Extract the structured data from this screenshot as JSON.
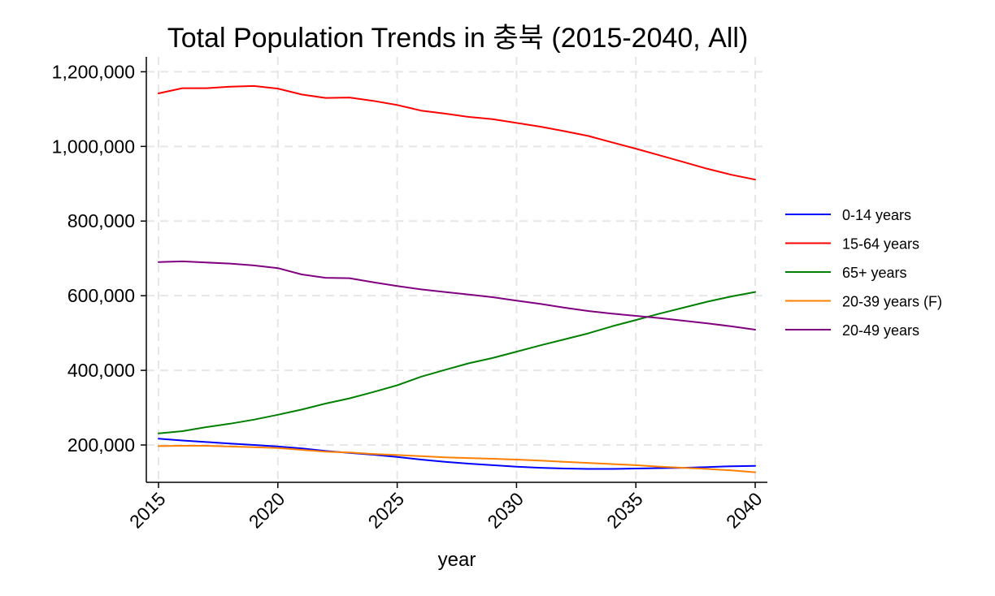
{
  "chart_data": {
    "type": "line",
    "title": "Total Population Trends in 충북 (2015-2040, All)",
    "xlabel": "year",
    "ylabel": "",
    "xlim": [
      2015,
      2040
    ],
    "ylim": [
      100000,
      1240000
    ],
    "grid": true,
    "legend_position": "right",
    "x_ticks": [
      2015,
      2020,
      2025,
      2030,
      2035,
      2040
    ],
    "y_ticks": [
      200000,
      400000,
      600000,
      800000,
      1000000,
      1200000
    ],
    "y_tick_labels": [
      "200,000",
      "400,000",
      "600,000",
      "800,000",
      "1,000,000",
      "1,200,000"
    ],
    "x": [
      2015,
      2016,
      2017,
      2018,
      2019,
      2020,
      2021,
      2022,
      2023,
      2024,
      2025,
      2026,
      2027,
      2028,
      2029,
      2030,
      2031,
      2032,
      2033,
      2034,
      2035,
      2036,
      2037,
      2038,
      2039,
      2040
    ],
    "series": [
      {
        "name": "0-14 years",
        "color": "#0000ff",
        "values": [
          217000,
          212000,
          208000,
          204000,
          200000,
          196000,
          191000,
          184000,
          179000,
          174000,
          168000,
          161000,
          155000,
          150000,
          146000,
          142000,
          139000,
          137000,
          136000,
          136000,
          137000,
          138000,
          139000,
          141000,
          143000,
          144000
        ]
      },
      {
        "name": "15-64 years",
        "color": "#ff0000",
        "values": [
          1142000,
          1156000,
          1156000,
          1160000,
          1162000,
          1155000,
          1139000,
          1130000,
          1131000,
          1122000,
          1111000,
          1096000,
          1088000,
          1079000,
          1073000,
          1063000,
          1053000,
          1041000,
          1028000,
          1011000,
          994000,
          976000,
          958000,
          940000,
          924000,
          911000
        ]
      },
      {
        "name": "65+ years",
        "color": "#008000",
        "values": [
          231000,
          237000,
          248000,
          257000,
          268000,
          281000,
          295000,
          311000,
          325000,
          342000,
          360000,
          383000,
          401000,
          419000,
          433000,
          450000,
          467000,
          483000,
          499000,
          518000,
          535000,
          552000,
          568000,
          584000,
          598000,
          610000
        ]
      },
      {
        "name": "20-39 years (F)",
        "color": "#ff8000",
        "values": [
          197000,
          198000,
          198000,
          196000,
          194000,
          192000,
          187000,
          182000,
          180000,
          176000,
          173000,
          170000,
          167000,
          165000,
          163000,
          161000,
          158000,
          155000,
          152000,
          149000,
          146000,
          142000,
          139000,
          136000,
          132000,
          127000
        ]
      },
      {
        "name": "20-49 years",
        "color": "#800080",
        "values": [
          690000,
          692000,
          689000,
          686000,
          681000,
          674000,
          657000,
          648000,
          647000,
          636000,
          626000,
          617000,
          610000,
          603000,
          596000,
          587000,
          578000,
          568000,
          559000,
          552000,
          546000,
          540000,
          533000,
          526000,
          518000,
          509000
        ]
      }
    ]
  }
}
